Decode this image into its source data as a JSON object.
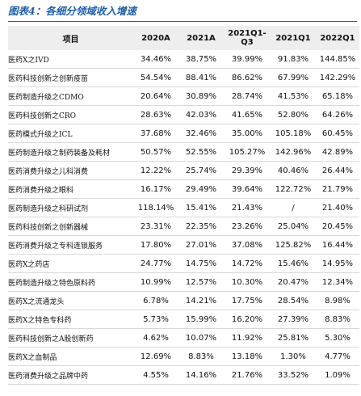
{
  "title": "图表4：各细分领域收入增速",
  "table": {
    "header": [
      "项目",
      "2020A",
      "2021A",
      "2021Q1-Q3",
      "2021Q1",
      "2022Q1"
    ],
    "rows": [
      [
        "医药X之IVD",
        "34.46%",
        "38.75%",
        "39.99%",
        "91.83%",
        "144.85%"
      ],
      [
        "医药科技创新之创新疫苗",
        "54.54%",
        "88.41%",
        "86.62%",
        "67.99%",
        "142.29%"
      ],
      [
        "医药制造升级之CDMO",
        "20.64%",
        "30.89%",
        "28.74%",
        "41.53%",
        "65.18%"
      ],
      [
        "医药科技创新之CRO",
        "28.63%",
        "42.03%",
        "41.65%",
        "52.80%",
        "64.26%"
      ],
      [
        "医药模式升级之ICL",
        "37.68%",
        "32.46%",
        "35.00%",
        "105.18%",
        "60.45%"
      ],
      [
        "医药制造升级之制药装备及耗材",
        "50.57%",
        "52.55%",
        "105.27%",
        "142.96%",
        "42.89%"
      ],
      [
        "医药消费升级之儿科消费",
        "12.22%",
        "25.74%",
        "29.39%",
        "40.46%",
        "26.44%"
      ],
      [
        "医药消费升级之眼科",
        "16.17%",
        "29.49%",
        "39.64%",
        "122.72%",
        "21.79%"
      ],
      [
        "医药制造升级之科研试剂",
        "118.14%",
        "15.41%",
        "21.43%",
        "/",
        "21.40%"
      ],
      [
        "医药科技创新之创新器械",
        "23.31%",
        "22.35%",
        "23.26%",
        "25.04%",
        "20.45%"
      ],
      [
        "医药消费升级之专科连锁服务",
        "17.80%",
        "27.01%",
        "37.08%",
        "125.82%",
        "16.44%"
      ],
      [
        "医药X之药店",
        "24.77%",
        "14.75%",
        "14.72%",
        "15.46%",
        "14.95%"
      ],
      [
        "医药制造升级之特色原料药",
        "10.99%",
        "12.57%",
        "10.30%",
        "20.47%",
        "12.34%"
      ],
      [
        "医药X之流通龙头",
        "6.78%",
        "14.21%",
        "17.75%",
        "28.54%",
        "8.98%"
      ],
      [
        "医药X之特色专科药",
        "5.73%",
        "15.99%",
        "16.20%",
        "27.39%",
        "8.83%"
      ],
      [
        "医药科技创新之A股创新药",
        "4.62%",
        "10.07%",
        "11.92%",
        "25.81%",
        "5.30%"
      ],
      [
        "医药X之血制品",
        "12.69%",
        "8.83%",
        "13.18%",
        "1.30%",
        "4.77%"
      ],
      [
        "医药消费升级之品牌中药",
        "4.55%",
        "14.16%",
        "21.76%",
        "33.52%",
        "1.09%"
      ]
    ]
  }
}
